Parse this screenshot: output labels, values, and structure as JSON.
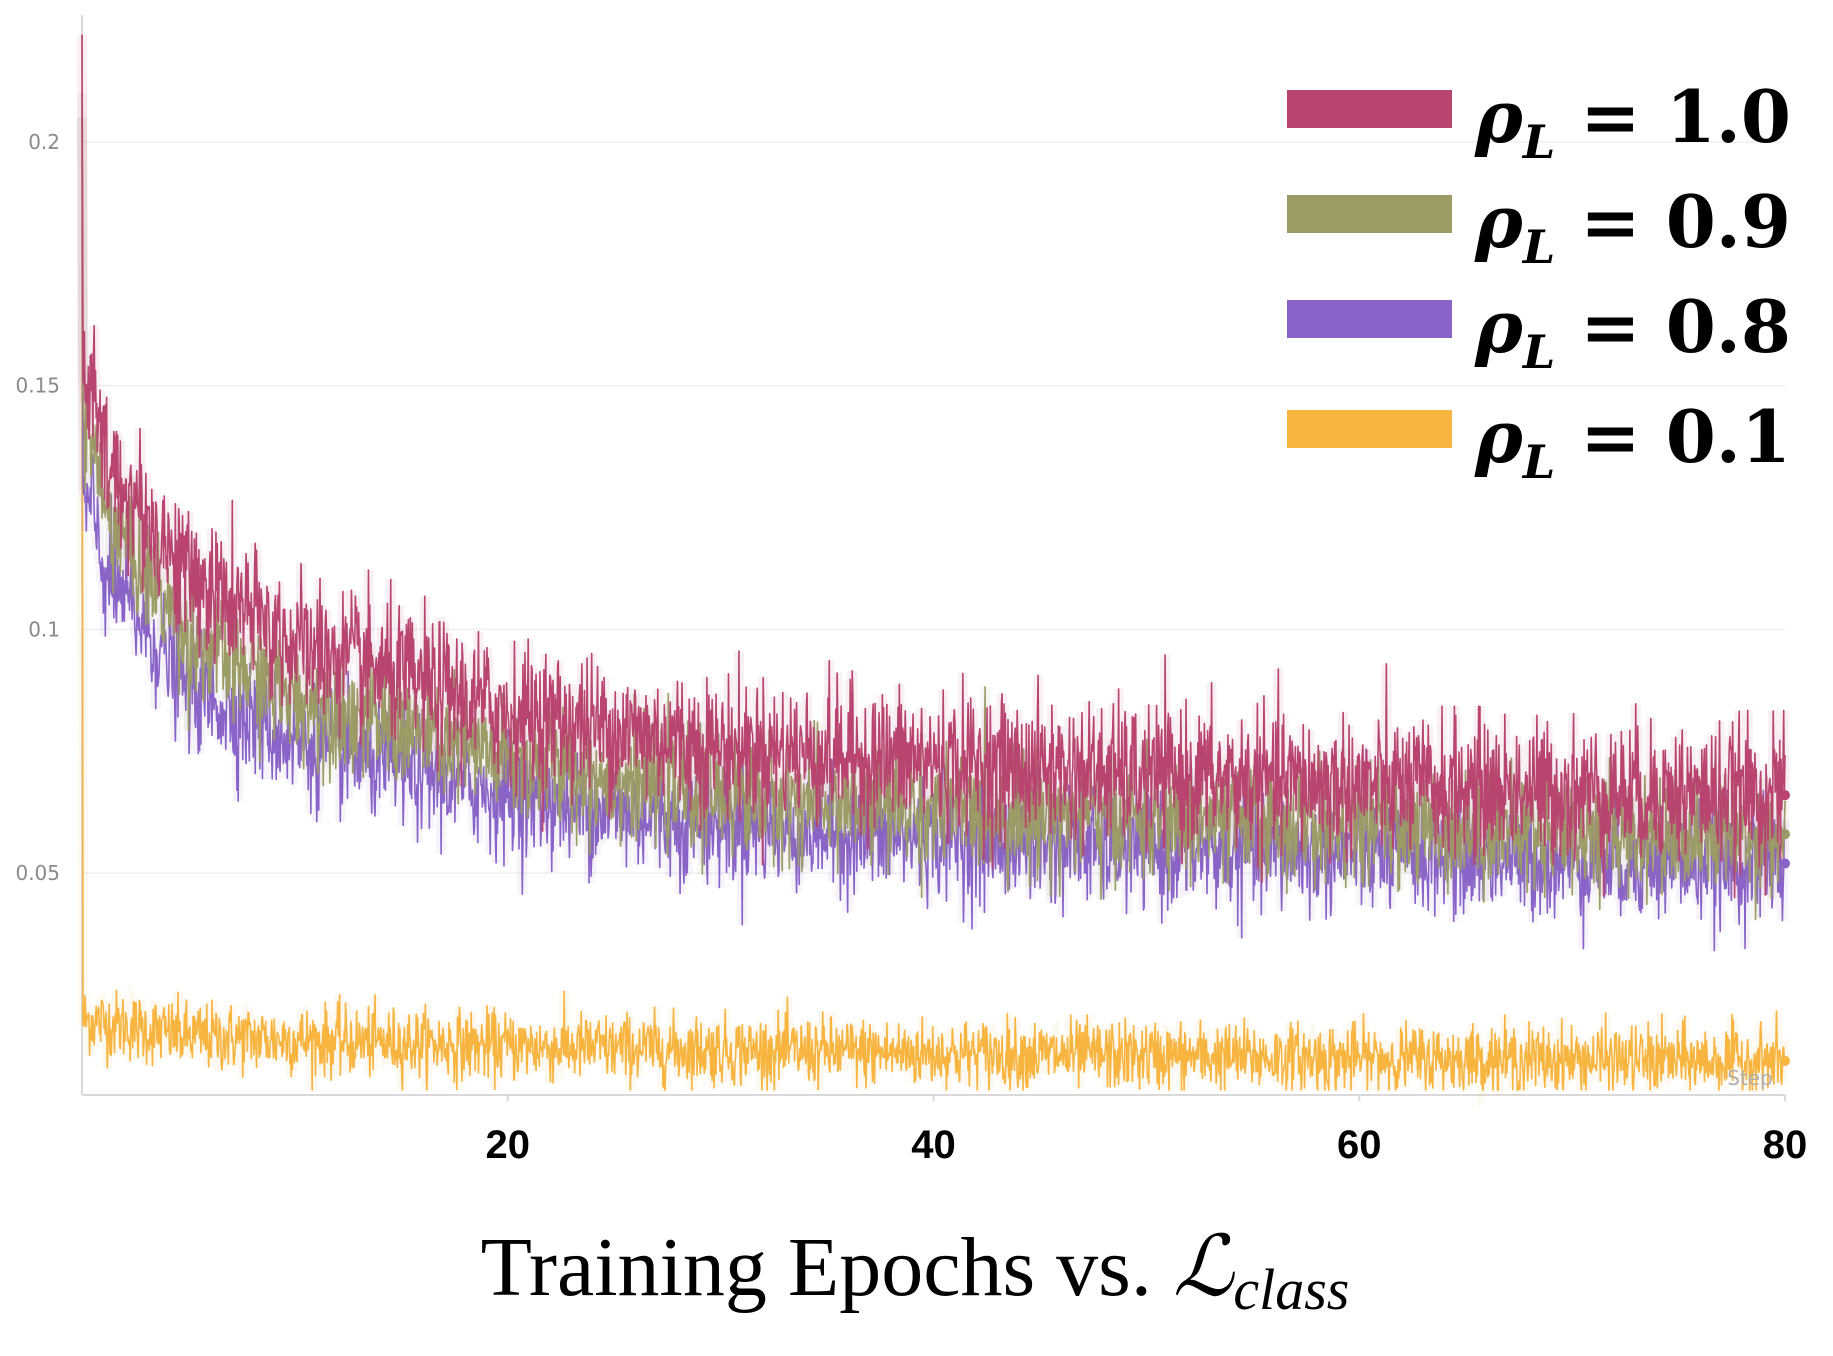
{
  "chart_data": {
    "type": "line",
    "title": "Training Epochs vs. ",
    "title_symbol": "ℒ",
    "title_subscript": "class",
    "xlabel": "Step",
    "ylabel": "",
    "xlim": [
      0,
      80
    ],
    "ylim": [
      0.0045,
      0.225
    ],
    "x_ticks": [
      20,
      40,
      60,
      80
    ],
    "y_ticks": [
      0.05,
      0.1,
      0.15,
      0.2
    ],
    "y_tick_labels": [
      "0.05",
      "0.1",
      "0.15",
      "0.2"
    ],
    "grid": true,
    "legend_position": "top-right",
    "series": [
      {
        "name": "ρL = 1.0",
        "legend_symbol": "ρ",
        "legend_subscript": "L",
        "legend_value": " = 1.0",
        "color": "#b8446f",
        "start": 0.222,
        "end_mean": 0.066,
        "noise": 0.007,
        "key_points": [
          [
            0.5,
            0.15
          ],
          [
            1,
            0.135
          ],
          [
            5,
            0.111
          ],
          [
            10,
            0.097
          ],
          [
            20,
            0.083
          ],
          [
            30,
            0.076
          ],
          [
            40,
            0.073
          ],
          [
            50,
            0.07
          ],
          [
            60,
            0.068
          ],
          [
            70,
            0.067
          ],
          [
            80,
            0.066
          ]
        ]
      },
      {
        "name": "ρL = 0.9",
        "legend_symbol": "ρ",
        "legend_subscript": "L",
        "legend_value": " = 0.9",
        "color": "#9c9c66",
        "start": 0.21,
        "end_mean": 0.058,
        "noise": 0.006,
        "key_points": [
          [
            0.5,
            0.14
          ],
          [
            1,
            0.125
          ],
          [
            5,
            0.098
          ],
          [
            10,
            0.086
          ],
          [
            20,
            0.073
          ],
          [
            30,
            0.066
          ],
          [
            40,
            0.063
          ],
          [
            50,
            0.061
          ],
          [
            60,
            0.06
          ],
          [
            70,
            0.059
          ],
          [
            80,
            0.058
          ]
        ]
      },
      {
        "name": "ρL = 0.8",
        "legend_symbol": "ρ",
        "legend_subscript": "L",
        "legend_value": " = 0.8",
        "color": "#8a63c8",
        "start": 0.205,
        "end_mean": 0.052,
        "noise": 0.006,
        "key_points": [
          [
            0.5,
            0.125
          ],
          [
            1,
            0.112
          ],
          [
            5,
            0.088
          ],
          [
            10,
            0.077
          ],
          [
            20,
            0.066
          ],
          [
            30,
            0.06
          ],
          [
            40,
            0.057
          ],
          [
            50,
            0.055
          ],
          [
            60,
            0.054
          ],
          [
            70,
            0.053
          ],
          [
            80,
            0.052
          ]
        ]
      },
      {
        "name": "ρL = 0.1",
        "legend_symbol": "ρ",
        "legend_subscript": "L",
        "legend_value": " = 0.1",
        "color": "#f7b43f",
        "start": 0.205,
        "end_mean": 0.0115,
        "noise": 0.0035,
        "key_points": [
          [
            0.1,
            0.02
          ],
          [
            5,
            0.0165
          ],
          [
            20,
            0.0145
          ],
          [
            40,
            0.013
          ],
          [
            60,
            0.012
          ],
          [
            80,
            0.0115
          ]
        ]
      }
    ]
  }
}
